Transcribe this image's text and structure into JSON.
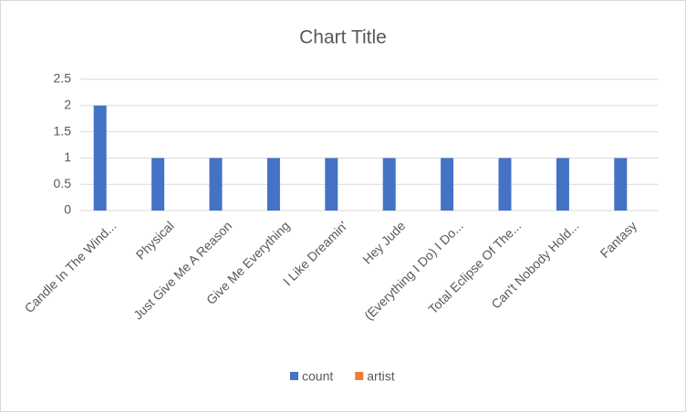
{
  "chart_data": {
    "type": "bar",
    "title": "Chart Title",
    "categories": [
      "Candle In The Wind...",
      "Physical",
      "Just Give Me A Reason",
      "Give Me Everything",
      "I Like Dreamin'",
      "Hey Jude",
      "(Everything I Do) I Do...",
      "Total Eclipse Of The...",
      "Can't Nobody Hold...",
      "Fantasy"
    ],
    "series": [
      {
        "name": "count",
        "color": "#4472c4",
        "values": [
          2,
          1,
          1,
          1,
          1,
          1,
          1,
          1,
          1,
          1
        ]
      },
      {
        "name": "artist",
        "color": "#ed7d31",
        "values": [
          null,
          null,
          null,
          null,
          null,
          null,
          null,
          null,
          null,
          null
        ]
      }
    ],
    "ylim": [
      0,
      2.5
    ],
    "yticks": [
      0,
      0.5,
      1,
      1.5,
      2,
      2.5
    ],
    "grid": true,
    "legend": "bottom"
  }
}
